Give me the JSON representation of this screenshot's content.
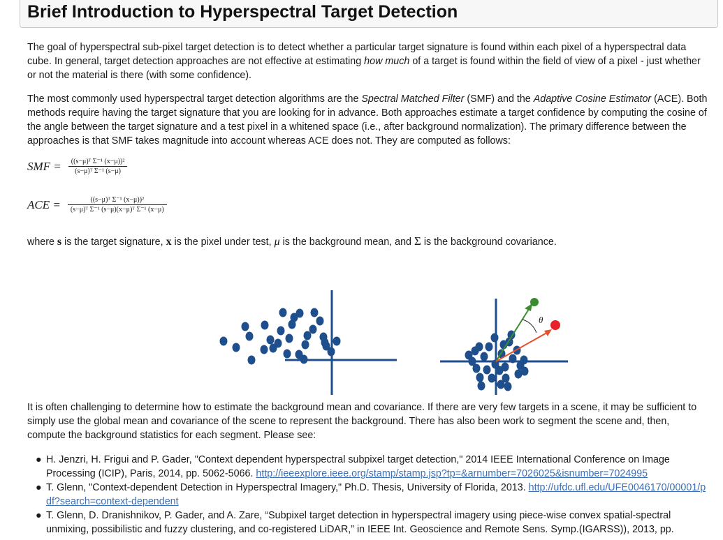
{
  "header": {
    "title": "Brief Introduction to Hyperspectral Target Detection"
  },
  "paragraph1": {
    "a": "The goal of hyperspectral sub-pixel target detection is to detect whether a particular target signature is found within each pixel of a hyperspectral data cube. In general, target detection approaches are not effective at estimating ",
    "em": "how much",
    "b": " of a target is found within the field of view of a pixel - just whether or not the material is there (with some confidence)."
  },
  "paragraph2": {
    "a": "The most commonly used hyperspectral target detection algorithms are the ",
    "smf_name": "Spectral Matched Filter",
    "b": " (SMF) and the ",
    "ace_name": "Adaptive Cosine Estimator",
    "c": " (ACE). Both methods require having the target signature that you are looking for in advance. Both approaches estimate a target confidence by computing the cosine of the angle between the target signature and a test pixel in a whitened space (i.e., after background normalization). The primary difference between the approaches is that SMF takes magnitude into account whereas ACE does not. They are computed as follows:"
  },
  "formulas": {
    "smf": {
      "label": "SMF =",
      "numerator": "((s−μ)ᵀ Σ⁻¹ (x−μ))²",
      "denominator": "(s−μ)ᵀ Σ⁻¹ (s−μ)"
    },
    "ace": {
      "label": "ACE =",
      "numerator": "((s−μ)ᵀ Σ⁻¹ (x−μ))²",
      "denominator": "(s−μ)ᵀ Σ⁻¹ (s−μ)(x−μ)ᵀ Σ⁻¹ (x−μ)"
    }
  },
  "paragraph3": {
    "a": "where ",
    "s": "s",
    "b": " is the target signature, ",
    "x": "x",
    "c": " is the pixel under test, ",
    "mu": "μ",
    "d": " is the background mean, and ",
    "sigma": "Σ",
    "e": " is the background covariance."
  },
  "diagram": {
    "theta_label": "θ",
    "colors": {
      "point": "#1f4e8c",
      "axis": "#1f4e8c",
      "target_vector": "#3a8c2e",
      "pixel_vector": "#e8502c",
      "target_dot": "#3a8c2e",
      "pixel_dot": "#e8202a"
    }
  },
  "paragraph4": "It is often challenging to determine how to estimate the background mean and covariance. If there are very few targets in a scene, it may be sufficient to simply use the global mean and covariance of the scene to represent the background. There has also been work to segment the scene and, then, compute the background statistics for each segment. Please see:",
  "references": [
    {
      "bullet": "●",
      "text": "H. Jenzri, H. Frigui and P. Gader, \"Context dependent hyperspectral subpixel target detection,\" 2014 IEEE International Conference on Image Processing (ICIP), Paris, 2014, pp. 5062-5066. ",
      "link": "http://ieeexplore.ieee.org/stamp/stamp.jsp?tp=&arnumber=7026025&isnumber=7024995"
    },
    {
      "bullet": "●",
      "text": "T. Glenn, \"Context-dependent Detection in Hyperspectral Imagery,\" Ph.D. Thesis, University of Florida, 2013. ",
      "link": "http://ufdc.ufl.edu/UFE0046170/00001/pdf?search=context-dependent"
    },
    {
      "bullet": "●",
      "text": "T. Glenn, D. Dranishnikov, P. Gader, and A. Zare, “Subpixel target detection in hyperspectral imagery using piece-wise convex spatial-spectral unmixing, possibilistic and fuzzy clustering, and co-registered LiDAR,” in IEEE Int. Geoscience and Remote Sens. Symp.(IGARSS)), 2013, pp.",
      "link": ""
    }
  ]
}
